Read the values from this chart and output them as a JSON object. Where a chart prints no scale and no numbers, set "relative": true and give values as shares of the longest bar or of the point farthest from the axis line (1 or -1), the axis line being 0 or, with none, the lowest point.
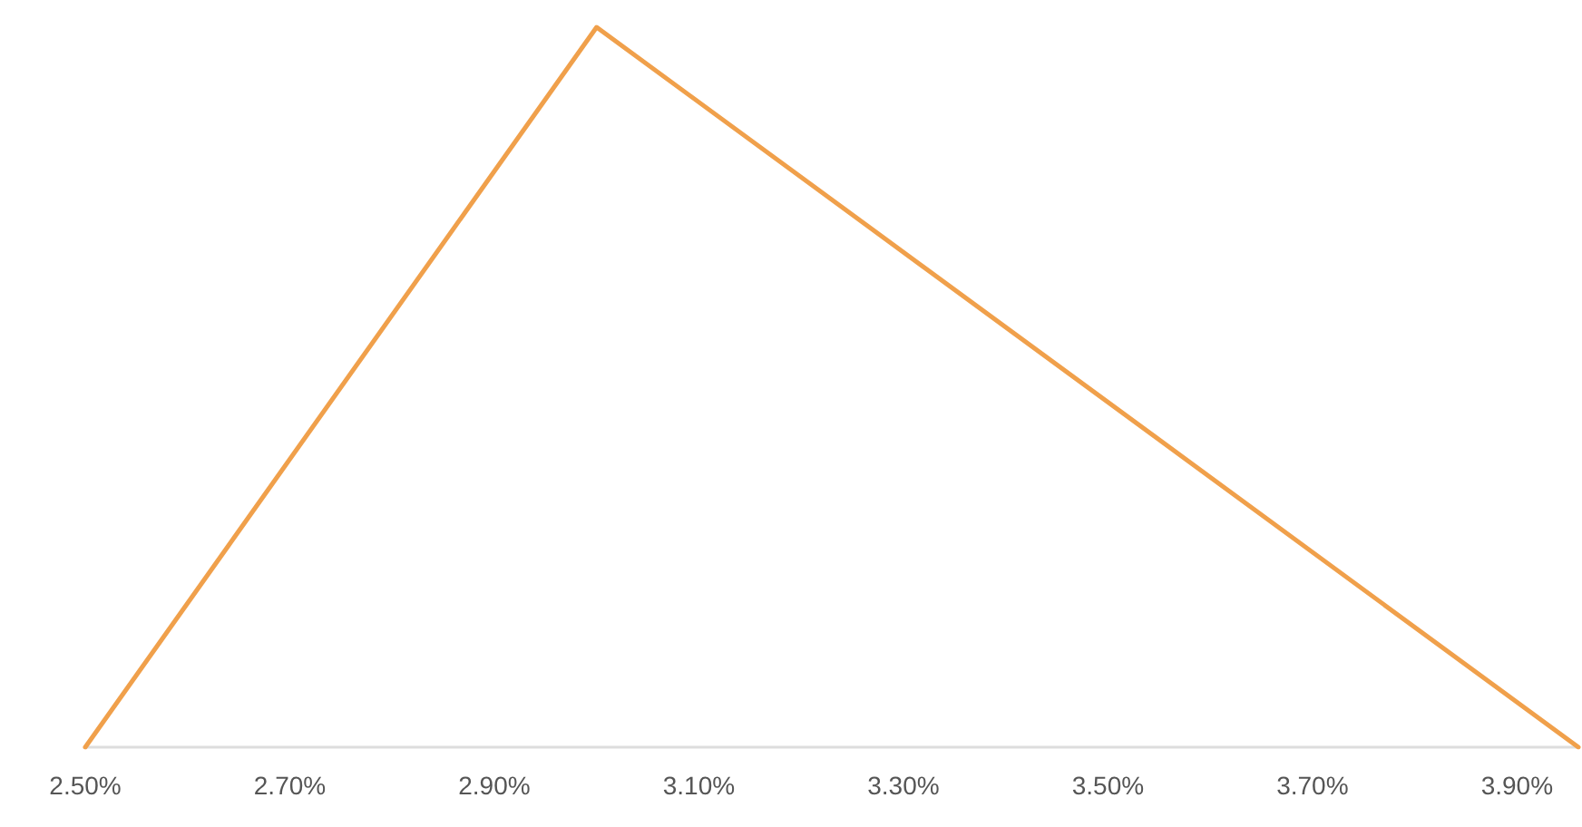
{
  "chart_data": {
    "type": "line",
    "relative": true,
    "x": [
      2.5,
      3.0,
      3.96
    ],
    "series": [
      {
        "color": "#f0a04b",
        "values": [
          0,
          1,
          0
        ]
      }
    ],
    "xlim": [
      2.5,
      3.96
    ],
    "xticks": [
      {
        "value": 2.5,
        "label": "2.50%"
      },
      {
        "value": 2.7,
        "label": "2.70%"
      },
      {
        "value": 2.9,
        "label": "2.90%"
      },
      {
        "value": 3.1,
        "label": "3.10%"
      },
      {
        "value": 3.3,
        "label": "3.30%"
      },
      {
        "value": 3.5,
        "label": "3.50%"
      },
      {
        "value": 3.7,
        "label": "3.70%"
      },
      {
        "value": 3.9,
        "label": "3.90%"
      }
    ],
    "grid": false,
    "marker": "none",
    "line_style": "solid"
  }
}
